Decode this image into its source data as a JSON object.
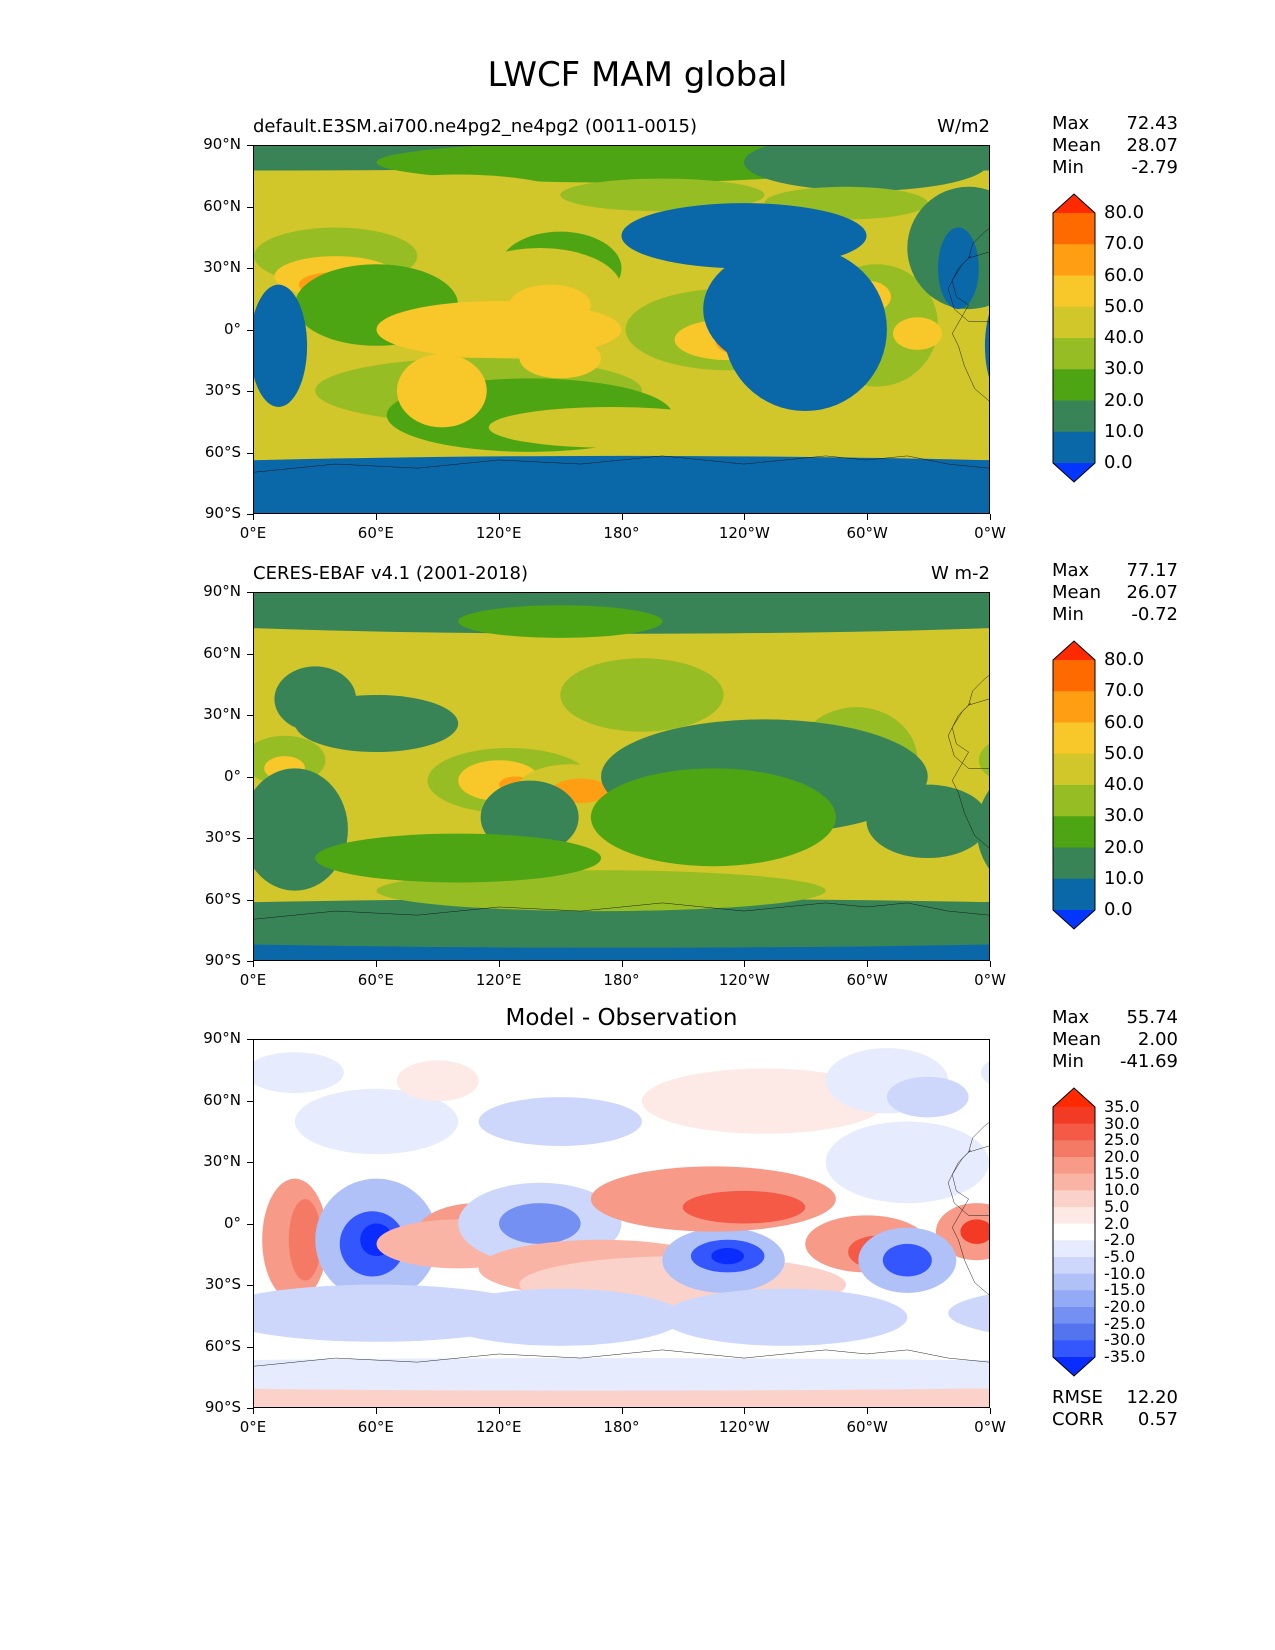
{
  "figure_title": "LWCF MAM global",
  "axes": {
    "y_ticks": [
      "90°N",
      "60°N",
      "30°N",
      "0°",
      "30°S",
      "60°S",
      "90°S"
    ],
    "x_ticks": [
      "0°E",
      "60°E",
      "120°E",
      "180°",
      "120°W",
      "60°W",
      "0°W"
    ]
  },
  "panels": [
    {
      "title_left": "default.E3SM.ai700.ne4pg2_ne4pg2 (0011-0015)",
      "title_right": "W/m2",
      "title_center": "",
      "stats": [
        {
          "label": "Max",
          "value": "72.43"
        },
        {
          "label": "Mean",
          "value": "28.07"
        },
        {
          "label": "Min",
          "value": "-2.79"
        }
      ],
      "colorbar": {
        "levels": [
          "80.0",
          "70.0",
          "60.0",
          "50.0",
          "40.0",
          "30.0",
          "20.0",
          "10.0",
          "0.0"
        ],
        "colors": [
          "#ff2a00",
          "#ff6a00",
          "#ff9e12",
          "#f8c72a",
          "#d1c62a",
          "#97bd24",
          "#4ea514",
          "#388457",
          "#0a67a8",
          "#0337ff"
        ]
      },
      "extra_stats": []
    },
    {
      "title_left": "CERES-EBAF v4.1 (2001-2018)",
      "title_right": "W m-2",
      "title_center": "",
      "stats": [
        {
          "label": "Max",
          "value": "77.17"
        },
        {
          "label": "Mean",
          "value": "26.07"
        },
        {
          "label": "Min",
          "value": "-0.72"
        }
      ],
      "colorbar": {
        "levels": [
          "80.0",
          "70.0",
          "60.0",
          "50.0",
          "40.0",
          "30.0",
          "20.0",
          "10.0",
          "0.0"
        ],
        "colors": [
          "#ff2a00",
          "#ff6a00",
          "#ff9e12",
          "#f8c72a",
          "#d1c62a",
          "#97bd24",
          "#4ea514",
          "#388457",
          "#0a67a8",
          "#0337ff"
        ]
      },
      "extra_stats": []
    },
    {
      "title_left": "",
      "title_right": "",
      "title_center": "Model - Observation",
      "stats": [
        {
          "label": "Max",
          "value": "55.74"
        },
        {
          "label": "Mean",
          "value": "2.00"
        },
        {
          "label": "Min",
          "value": "-41.69"
        }
      ],
      "colorbar": {
        "levels": [
          "35.0",
          "30.0",
          "25.0",
          "20.0",
          "15.0",
          "10.0",
          "5.0",
          "2.0",
          "-2.0",
          "-5.0",
          "-10.0",
          "-15.0",
          "-20.0",
          "-25.0",
          "-30.0",
          "-35.0"
        ],
        "colors": [
          "#ff2a00",
          "#f23a25",
          "#f45a45",
          "#f57a66",
          "#f79a88",
          "#f9b4a6",
          "#fbd2ca",
          "#fde9e5",
          "#ffffff",
          "#e6ebfd",
          "#cdd7fb",
          "#b0c1f8",
          "#93aaf6",
          "#7390f2",
          "#5474ef",
          "#3456ff",
          "#0a2cff"
        ]
      },
      "extra_stats": [
        {
          "label": "RMSE",
          "value": "12.20"
        },
        {
          "label": "CORR",
          "value": "0.57"
        }
      ]
    }
  ]
}
